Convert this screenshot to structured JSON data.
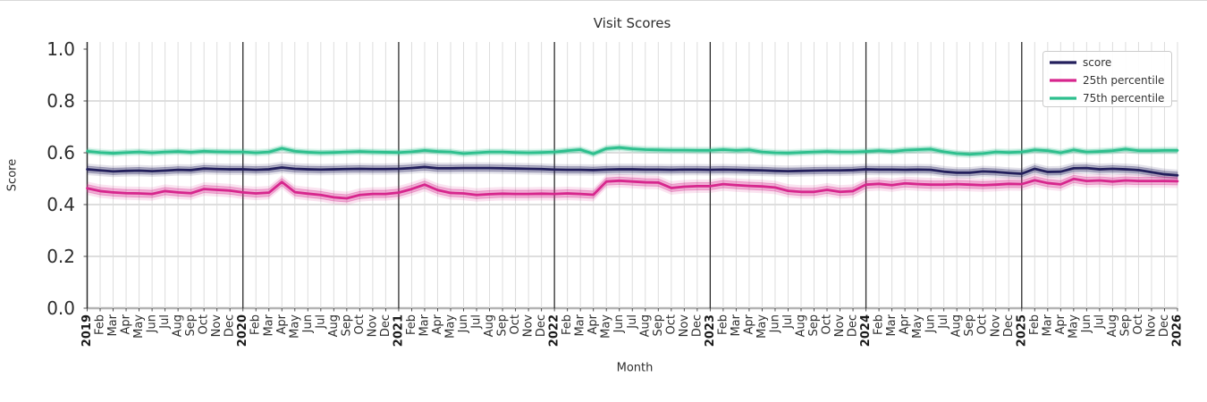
{
  "title": "Visit Scores",
  "axes": {
    "xlabel": "Month",
    "ylabel": "Score",
    "yticks": [
      "0.0",
      "0.2",
      "0.4",
      "0.6",
      "0.8",
      "1.0"
    ],
    "years": [
      2019,
      2020,
      2021,
      2022,
      2023,
      2024,
      2025,
      2026
    ],
    "months": [
      "Feb",
      "Mar",
      "Apr",
      "May",
      "Jun",
      "Jul",
      "Aug",
      "Sep",
      "Oct",
      "Nov",
      "Dec"
    ]
  },
  "legend": [
    {
      "label": "score",
      "color": "#231f5c"
    },
    {
      "label": "25th percentile",
      "color": "#d7268d"
    },
    {
      "label": "75th percentile",
      "color": "#2dbf8d"
    }
  ],
  "chart_data": {
    "type": "line",
    "title": "Visit Scores",
    "xlabel": "Month",
    "ylabel": "Score",
    "ylim": [
      0.0,
      1.0
    ],
    "grid": true,
    "legend_position": "upper right",
    "x_start": "2019-01",
    "x_end": "2026-01",
    "x_frequency": "monthly",
    "series": [
      {
        "name": "score",
        "color": "#231f5c",
        "band_inner": 0.012,
        "band_outer": 0.022,
        "values": [
          0.536,
          0.532,
          0.528,
          0.53,
          0.531,
          0.529,
          0.531,
          0.534,
          0.533,
          0.539,
          0.537,
          0.536,
          0.536,
          0.534,
          0.536,
          0.543,
          0.538,
          0.536,
          0.535,
          0.536,
          0.537,
          0.538,
          0.537,
          0.537,
          0.538,
          0.541,
          0.545,
          0.54,
          0.54,
          0.541,
          0.541,
          0.541,
          0.54,
          0.539,
          0.538,
          0.537,
          0.535,
          0.534,
          0.534,
          0.533,
          0.535,
          0.536,
          0.536,
          0.535,
          0.535,
          0.534,
          0.535,
          0.535,
          0.534,
          0.535,
          0.534,
          0.533,
          0.532,
          0.53,
          0.529,
          0.53,
          0.531,
          0.532,
          0.532,
          0.533,
          0.536,
          0.535,
          0.535,
          0.534,
          0.535,
          0.534,
          0.527,
          0.523,
          0.523,
          0.528,
          0.526,
          0.522,
          0.519,
          0.538,
          0.526,
          0.527,
          0.54,
          0.541,
          0.536,
          0.538,
          0.536,
          0.533,
          0.525,
          0.517,
          0.513
        ]
      },
      {
        "name": "25th percentile",
        "color": "#d7268d",
        "band_inner": 0.014,
        "band_outer": 0.026,
        "values": [
          0.463,
          0.452,
          0.447,
          0.444,
          0.443,
          0.441,
          0.452,
          0.447,
          0.444,
          0.46,
          0.457,
          0.454,
          0.447,
          0.443,
          0.446,
          0.487,
          0.448,
          0.442,
          0.437,
          0.428,
          0.424,
          0.437,
          0.441,
          0.441,
          0.446,
          0.46,
          0.477,
          0.456,
          0.445,
          0.443,
          0.437,
          0.44,
          0.442,
          0.441,
          0.441,
          0.442,
          0.441,
          0.443,
          0.441,
          0.438,
          0.489,
          0.492,
          0.489,
          0.486,
          0.485,
          0.464,
          0.469,
          0.471,
          0.471,
          0.479,
          0.475,
          0.472,
          0.47,
          0.466,
          0.453,
          0.449,
          0.449,
          0.457,
          0.449,
          0.452,
          0.477,
          0.48,
          0.475,
          0.482,
          0.479,
          0.477,
          0.477,
          0.479,
          0.477,
          0.475,
          0.477,
          0.48,
          0.479,
          0.494,
          0.483,
          0.478,
          0.499,
          0.491,
          0.493,
          0.489,
          0.493,
          0.491,
          0.491,
          0.491,
          0.49
        ]
      },
      {
        "name": "75th percentile",
        "color": "#2dbf8d",
        "band_inner": 0.008,
        "band_outer": 0.015,
        "values": [
          0.606,
          0.601,
          0.598,
          0.601,
          0.603,
          0.6,
          0.603,
          0.605,
          0.602,
          0.606,
          0.604,
          0.603,
          0.603,
          0.6,
          0.603,
          0.617,
          0.606,
          0.602,
          0.6,
          0.601,
          0.603,
          0.605,
          0.603,
          0.602,
          0.601,
          0.604,
          0.609,
          0.605,
          0.603,
          0.597,
          0.6,
          0.603,
          0.603,
          0.601,
          0.6,
          0.601,
          0.603,
          0.608,
          0.612,
          0.596,
          0.616,
          0.62,
          0.615,
          0.612,
          0.611,
          0.61,
          0.61,
          0.609,
          0.609,
          0.612,
          0.609,
          0.611,
          0.603,
          0.6,
          0.599,
          0.601,
          0.603,
          0.605,
          0.603,
          0.603,
          0.605,
          0.608,
          0.605,
          0.61,
          0.612,
          0.614,
          0.604,
          0.597,
          0.594,
          0.597,
          0.603,
          0.601,
          0.603,
          0.611,
          0.608,
          0.6,
          0.611,
          0.603,
          0.605,
          0.608,
          0.614,
          0.608,
          0.608,
          0.609,
          0.609
        ]
      }
    ]
  }
}
